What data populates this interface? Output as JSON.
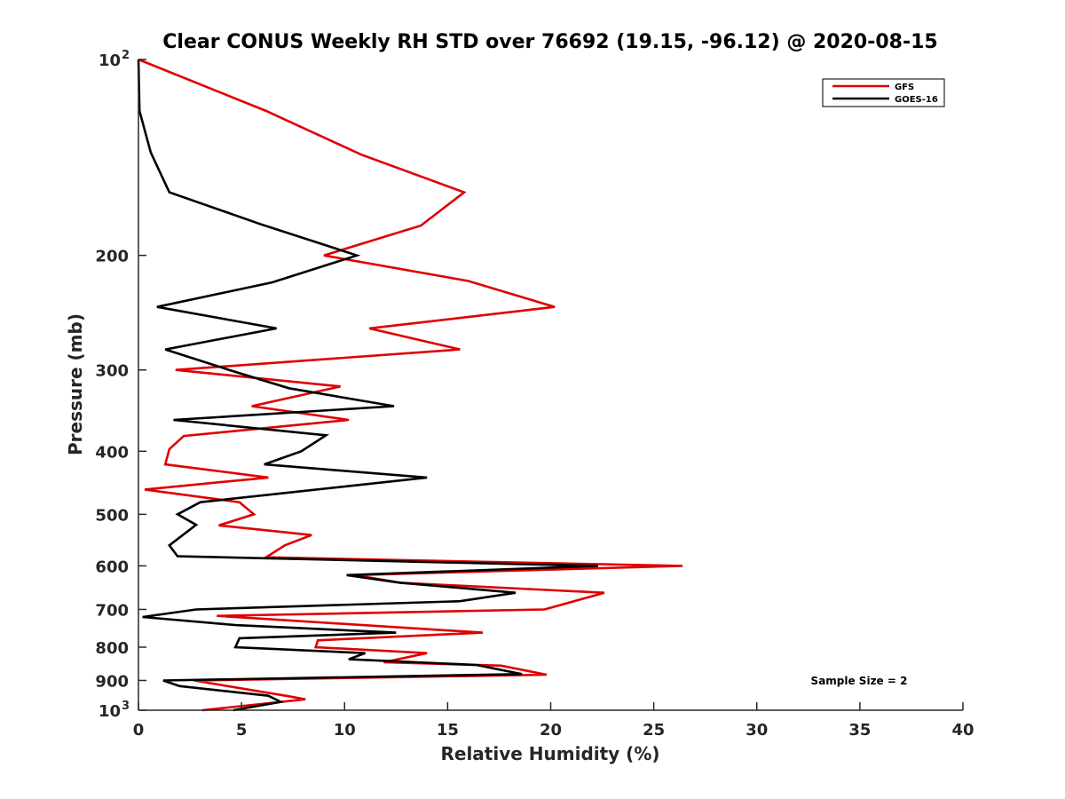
{
  "chart_data": {
    "type": "line",
    "title": "Clear CONUS Weekly RH STD over 76692 (19.15, -96.12) @ 2020-08-15",
    "xlabel": "Relative Humidity (%)",
    "ylabel": "Pressure (mb)",
    "xlim": [
      0,
      40
    ],
    "ylim": [
      1000,
      100
    ],
    "yscale": "log",
    "y_reversed": true,
    "grid": false,
    "x_ticks": [
      {
        "value": 0,
        "label": "0"
      },
      {
        "value": 5,
        "label": "5"
      },
      {
        "value": 10,
        "label": "10"
      },
      {
        "value": 15,
        "label": "15"
      },
      {
        "value": 20,
        "label": "20"
      },
      {
        "value": 25,
        "label": "25"
      },
      {
        "value": 30,
        "label": "30"
      },
      {
        "value": 35,
        "label": "35"
      },
      {
        "value": 40,
        "label": "40"
      }
    ],
    "y_ticks": [
      {
        "value": 100,
        "label": "10",
        "sup": "2"
      },
      {
        "value": 200,
        "label": "200"
      },
      {
        "value": 300,
        "label": "300"
      },
      {
        "value": 400,
        "label": "400"
      },
      {
        "value": 500,
        "label": "500"
      },
      {
        "value": 600,
        "label": "600"
      },
      {
        "value": 700,
        "label": "700"
      },
      {
        "value": 800,
        "label": "800"
      },
      {
        "value": 900,
        "label": "900"
      },
      {
        "value": 1000,
        "label": "10",
        "sup": "3"
      }
    ],
    "legend": {
      "placement": "top-right"
    },
    "annotation": "Sample Size = 2",
    "series": [
      {
        "name": "GFS",
        "color": "#e00000",
        "points": [
          [
            0,
            100
          ],
          [
            6.2,
            120
          ],
          [
            10.8,
            140
          ],
          [
            15.8,
            160
          ],
          [
            13.7,
            180
          ],
          [
            9.0,
            200
          ],
          [
            16.0,
            219
          ],
          [
            20.2,
            240
          ],
          [
            11.2,
            259
          ],
          [
            15.6,
            279
          ],
          [
            1.8,
            300
          ],
          [
            9.8,
            318
          ],
          [
            5.5,
            341
          ],
          [
            10.2,
            358
          ],
          [
            2.2,
            379
          ],
          [
            1.5,
            397
          ],
          [
            1.3,
            419
          ],
          [
            6.3,
            439
          ],
          [
            0.3,
            458
          ],
          [
            4.9,
            479
          ],
          [
            5.6,
            500
          ],
          [
            3.9,
            520
          ],
          [
            8.4,
            538
          ],
          [
            7.1,
            558
          ],
          [
            6.2,
            582
          ],
          [
            26.4,
            600
          ],
          [
            10.5,
            620
          ],
          [
            12.7,
            637
          ],
          [
            22.6,
            660
          ],
          [
            19.7,
            700
          ],
          [
            3.8,
            716
          ],
          [
            16.7,
            760
          ],
          [
            8.7,
            781
          ],
          [
            8.6,
            800
          ],
          [
            14.0,
            817
          ],
          [
            11.9,
            844
          ],
          [
            17.6,
            854
          ],
          [
            19.8,
            882
          ],
          [
            2.7,
            900
          ],
          [
            7.3,
            952
          ],
          [
            8.1,
            962
          ],
          [
            3.1,
            1000
          ]
        ]
      },
      {
        "name": "GOES-16",
        "color": "#000000",
        "points": [
          [
            0,
            100
          ],
          [
            0.05,
            120
          ],
          [
            0.6,
            139
          ],
          [
            1.5,
            160
          ],
          [
            5.9,
            179
          ],
          [
            10.6,
            200
          ],
          [
            6.5,
            220
          ],
          [
            0.9,
            240
          ],
          [
            6.7,
            259
          ],
          [
            1.3,
            279
          ],
          [
            4.4,
            300
          ],
          [
            7.3,
            320
          ],
          [
            12.4,
            341
          ],
          [
            1.7,
            358
          ],
          [
            9.1,
            378
          ],
          [
            7.9,
            400
          ],
          [
            6.1,
            419
          ],
          [
            14.0,
            439
          ],
          [
            3.0,
            479
          ],
          [
            1.9,
            500
          ],
          [
            2.8,
            519
          ],
          [
            1.5,
            558
          ],
          [
            1.9,
            580
          ],
          [
            22.3,
            600
          ],
          [
            10.1,
            620
          ],
          [
            12.7,
            637
          ],
          [
            18.3,
            660
          ],
          [
            15.6,
            680
          ],
          [
            2.8,
            700
          ],
          [
            0.2,
            719
          ],
          [
            4.7,
            740
          ],
          [
            12.5,
            760
          ],
          [
            4.9,
            775
          ],
          [
            4.7,
            800
          ],
          [
            11.0,
            817
          ],
          [
            10.2,
            835
          ],
          [
            16.4,
            852
          ],
          [
            18.6,
            880
          ],
          [
            1.2,
            900
          ],
          [
            2.0,
            918
          ],
          [
            6.3,
            950
          ],
          [
            6.9,
            971
          ],
          [
            4.6,
            1000
          ]
        ]
      }
    ]
  }
}
